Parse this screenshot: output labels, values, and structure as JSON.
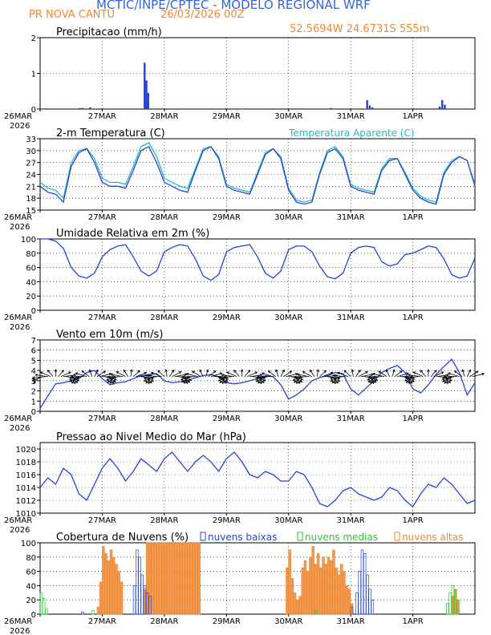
{
  "header": {
    "title": "MCTIC/INPE/CPTEC - MODELO REGIONAL WRF",
    "location": "PR NOVA CANTU",
    "run": "26/03/2026 00Z",
    "coords": "52.5694W 24.6731S 555m"
  },
  "colors": {
    "title": "#3366dd",
    "orange": "#ee8833",
    "blue": "#2244dd",
    "cyan": "#22bbbb",
    "green": "#22cc22",
    "black": "#000000"
  },
  "time_axis": {
    "labels": [
      "26MAR",
      "27MAR",
      "28MAR",
      "29MAR",
      "30MAR",
      "31MAR",
      "1APR"
    ],
    "year": "2026",
    "hours": 168
  },
  "chart_data": [
    {
      "id": "precip",
      "type": "bar",
      "title": "Precipitacao (mm/h)",
      "ylim": [
        0,
        2
      ],
      "yticks": [
        0,
        1,
        2
      ],
      "series": [
        {
          "name": "Precipitacao",
          "x": [
            2,
            15,
            16,
            19,
            40,
            40.7,
            41.4,
            112,
            126,
            127,
            128,
            154,
            155,
            156
          ],
          "values": [
            0.02,
            0.03,
            0.03,
            0.05,
            1.3,
            0.8,
            0.45,
            0.03,
            0.25,
            0.1,
            0.05,
            0.07,
            0.25,
            0.12
          ]
        }
      ]
    },
    {
      "id": "temp",
      "type": "line",
      "title": "2-m Temperatura (C)",
      "legend": "Temperatura Aparente (C)",
      "ylim": [
        15,
        33
      ],
      "yticks": [
        15,
        18,
        21,
        24,
        27,
        30,
        33
      ],
      "series": [
        {
          "name": "Temperatura",
          "x": [
            0,
            3,
            6,
            9,
            12,
            15,
            18,
            21,
            24,
            27,
            30,
            33,
            36,
            39,
            42,
            45,
            48,
            51,
            54,
            57,
            60,
            63,
            66,
            69,
            72,
            75,
            78,
            81,
            84,
            87,
            90,
            93,
            96,
            99,
            102,
            105,
            108,
            111,
            114,
            117,
            120,
            123,
            126,
            129,
            132,
            135,
            138,
            141,
            144,
            147,
            150,
            153,
            156,
            159,
            162,
            165,
            168
          ],
          "values": [
            21,
            19.5,
            19,
            17,
            26,
            29.5,
            30.5,
            27,
            22,
            21,
            21,
            20.5,
            25,
            30,
            31,
            27,
            22,
            21,
            20,
            19.5,
            25,
            30,
            31,
            28,
            21,
            20,
            19.5,
            19,
            24,
            29,
            30.5,
            28,
            20,
            17,
            16.5,
            17,
            24,
            29.5,
            30.5,
            28,
            21,
            20,
            19.5,
            19,
            25,
            27.5,
            28,
            24,
            20,
            18,
            17,
            16.5,
            24,
            27,
            28.5,
            27.5,
            21
          ]
        },
        {
          "name": "Temperatura Aparente",
          "x": [
            0,
            3,
            6,
            9,
            12,
            15,
            18,
            21,
            24,
            27,
            30,
            33,
            36,
            39,
            42,
            45,
            48,
            51,
            54,
            57,
            60,
            63,
            66,
            69,
            72,
            75,
            78,
            81,
            84,
            87,
            90,
            93,
            96,
            99,
            102,
            105,
            108,
            111,
            114,
            117,
            120,
            123,
            126,
            129,
            132,
            135,
            138,
            141,
            144,
            147,
            150,
            153,
            156,
            159,
            162,
            165,
            168
          ],
          "values": [
            22,
            20.5,
            20,
            18,
            27,
            30,
            30.5,
            28,
            23,
            22,
            22,
            21.5,
            26,
            31,
            32,
            28.5,
            23,
            22,
            21,
            20.5,
            25.5,
            30.5,
            31,
            28.5,
            21.5,
            20.5,
            20,
            19.5,
            24.5,
            29.5,
            30.5,
            28.5,
            20.5,
            17.5,
            17,
            17.5,
            24.5,
            30,
            31,
            28.5,
            21.5,
            20.5,
            20,
            19.5,
            25.5,
            28,
            28,
            24.5,
            20.5,
            18.5,
            17.5,
            17,
            24.5,
            27.5,
            28.5,
            27.5,
            21.5
          ]
        }
      ]
    },
    {
      "id": "rh",
      "type": "line",
      "title": "Umidade Relativa em 2m (%)",
      "ylim": [
        0,
        100
      ],
      "yticks": [
        0,
        20,
        40,
        60,
        80,
        100
      ],
      "series": [
        {
          "name": "Umidade",
          "x": [
            0,
            3,
            6,
            9,
            12,
            15,
            18,
            21,
            24,
            27,
            30,
            33,
            36,
            39,
            42,
            45,
            48,
            51,
            54,
            57,
            60,
            63,
            66,
            69,
            72,
            75,
            78,
            81,
            84,
            87,
            90,
            93,
            96,
            99,
            102,
            105,
            108,
            111,
            114,
            117,
            120,
            123,
            126,
            129,
            132,
            135,
            138,
            141,
            144,
            147,
            150,
            153,
            156,
            159,
            162,
            165,
            168
          ],
          "values": [
            100,
            100,
            97,
            87,
            60,
            48,
            45,
            52,
            75,
            85,
            90,
            92,
            75,
            55,
            48,
            55,
            82,
            88,
            92,
            90,
            72,
            48,
            42,
            50,
            82,
            88,
            90,
            92,
            75,
            52,
            45,
            55,
            85,
            90,
            90,
            82,
            62,
            47,
            44,
            52,
            80,
            88,
            90,
            88,
            68,
            62,
            65,
            78,
            80,
            85,
            90,
            88,
            72,
            50,
            45,
            48,
            73
          ]
        }
      ]
    },
    {
      "id": "wind",
      "type": "line",
      "title": "Vento em 10m (m/s)",
      "ylim": [
        0,
        7
      ],
      "yticks": [
        0,
        1,
        2,
        3,
        4,
        5,
        6,
        7
      ],
      "series": [
        {
          "name": "Vento",
          "x": [
            0,
            3,
            6,
            9,
            12,
            15,
            18,
            21,
            24,
            27,
            30,
            33,
            36,
            39,
            42,
            45,
            48,
            51,
            54,
            57,
            60,
            63,
            66,
            69,
            72,
            75,
            78,
            81,
            84,
            87,
            90,
            93,
            96,
            99,
            102,
            105,
            108,
            111,
            114,
            117,
            120,
            123,
            126,
            129,
            132,
            135,
            138,
            141,
            144,
            147,
            150,
            153,
            156,
            159,
            162,
            165,
            168
          ],
          "values": [
            0.3,
            1.5,
            2.7,
            2.8,
            3.0,
            3.2,
            3.8,
            4.0,
            3.2,
            2.6,
            2.8,
            2.9,
            3.2,
            3.5,
            3.6,
            3.7,
            3.0,
            2.8,
            2.9,
            3.0,
            3.3,
            3.5,
            3.6,
            3.4,
            2.8,
            2.7,
            2.8,
            3.0,
            3.2,
            3.5,
            3.4,
            2.6,
            1.2,
            1.6,
            2.2,
            3.0,
            3.3,
            3.5,
            3.8,
            3.7,
            2.2,
            1.6,
            2.3,
            3.0,
            3.8,
            4.2,
            4.5,
            3.8,
            2.2,
            1.8,
            2.6,
            3.6,
            4.4,
            5.1,
            3.8,
            1.6,
            2.8
          ]
        }
      ]
    },
    {
      "id": "pressure",
      "type": "line",
      "title": "Pressao ao Nivel Medio do Mar (hPa)",
      "ylim": [
        1010,
        1021
      ],
      "yticks": [
        1010,
        1012,
        1014,
        1016,
        1018,
        1020
      ],
      "series": [
        {
          "name": "Pressao",
          "x": [
            0,
            3,
            6,
            9,
            12,
            15,
            18,
            21,
            24,
            27,
            30,
            33,
            36,
            39,
            42,
            45,
            48,
            51,
            54,
            57,
            60,
            63,
            66,
            69,
            72,
            75,
            78,
            81,
            84,
            87,
            90,
            93,
            96,
            99,
            102,
            105,
            108,
            111,
            114,
            117,
            120,
            123,
            126,
            129,
            132,
            135,
            138,
            141,
            144,
            147,
            150,
            153,
            156,
            159,
            162,
            165,
            168
          ],
          "values": [
            1014,
            1015.5,
            1014.5,
            1017,
            1016,
            1013,
            1012,
            1014.5,
            1017,
            1018.5,
            1017,
            1015,
            1016.5,
            1018.5,
            1017.5,
            1016.5,
            1018.5,
            1019.5,
            1018,
            1016.5,
            1018,
            1019,
            1018,
            1016.5,
            1018.5,
            1019.5,
            1018,
            1016,
            1015.5,
            1016.5,
            1016,
            1015,
            1015,
            1016.5,
            1016,
            1014,
            1011.5,
            1011,
            1012,
            1013.5,
            1014,
            1013,
            1012.5,
            1012,
            1012.5,
            1014,
            1013.5,
            1012,
            1011,
            1013,
            1014.5,
            1014,
            1015.5,
            1014.5,
            1013,
            1011.5,
            1012
          ]
        }
      ]
    },
    {
      "id": "clouds",
      "type": "bar",
      "title": "Cobertura de Nuvens (%)",
      "legend": [
        "nuvens baixas",
        "nuvens medias",
        "nuvens altas"
      ],
      "ylim": [
        0,
        100
      ],
      "yticks": [
        0,
        20,
        40,
        60,
        80,
        100
      ],
      "series": [
        {
          "name": "nuvens baixas",
          "x": [
            16,
            36,
            37,
            38,
            39,
            40,
            41,
            42,
            120,
            122,
            123,
            124,
            125,
            126,
            127,
            128
          ],
          "values": [
            3,
            40,
            90,
            80,
            55,
            40,
            30,
            25,
            10,
            30,
            60,
            90,
            85,
            55,
            35,
            20
          ]
        },
        {
          "name": "nuvens medias",
          "x": [
            0,
            1,
            2,
            20,
            106,
            157,
            158,
            159,
            160,
            161
          ],
          "values": [
            30,
            22,
            8,
            5,
            5,
            15,
            30,
            40,
            35,
            20
          ]
        },
        {
          "name": "nuvens altas",
          "x": [
            22,
            23,
            24,
            25,
            26,
            27,
            28,
            29,
            30,
            31,
            40,
            41,
            42,
            43,
            44,
            45,
            46,
            47,
            48,
            49,
            50,
            51,
            52,
            53,
            54,
            55,
            56,
            57,
            58,
            59,
            60,
            61,
            95,
            96,
            97,
            98,
            99,
            100,
            101,
            102,
            103,
            104,
            105,
            106,
            107,
            108,
            109,
            110,
            111,
            112,
            113,
            114,
            115,
            116,
            117,
            118,
            119,
            120,
            159,
            160,
            161
          ],
          "values": [
            10,
            45,
            95,
            85,
            75,
            90,
            80,
            70,
            60,
            45,
            35,
            100,
            100,
            100,
            100,
            100,
            100,
            100,
            100,
            100,
            100,
            100,
            100,
            100,
            100,
            100,
            100,
            100,
            100,
            100,
            100,
            100,
            65,
            90,
            50,
            30,
            20,
            25,
            65,
            75,
            60,
            80,
            95,
            70,
            85,
            65,
            80,
            70,
            80,
            75,
            90,
            65,
            55,
            70,
            60,
            40,
            35,
            15,
            25,
            35,
            20
          ]
        }
      ]
    }
  ],
  "wind_barbs": {
    "x": [
      0,
      1,
      2,
      3,
      4,
      5,
      6,
      7,
      8,
      9,
      10,
      11,
      12,
      13,
      14,
      15,
      16,
      17,
      18,
      19,
      20,
      21,
      22,
      23,
      24,
      25,
      26,
      27,
      28,
      29,
      30,
      31,
      32,
      33,
      34,
      35,
      36,
      37,
      38,
      39,
      40,
      41,
      42,
      43,
      44,
      45,
      46,
      47,
      48,
      49,
      50,
      51,
      52,
      53,
      54,
      55,
      56,
      57,
      58,
      59,
      60,
      61,
      62,
      63,
      64,
      65,
      66,
      67,
      68,
      69,
      70,
      71,
      72,
      73,
      74,
      75,
      76,
      77,
      78,
      79,
      80,
      81,
      82,
      83,
      84,
      85,
      86,
      87,
      88,
      89,
      90,
      91,
      92,
      93,
      94,
      95,
      96,
      97,
      98,
      99,
      100,
      101,
      102,
      103,
      104,
      105,
      106,
      107,
      108,
      109,
      110,
      111,
      112,
      113,
      114,
      115,
      116,
      117,
      118,
      119,
      120,
      121,
      122,
      123,
      124,
      125,
      126,
      127,
      128,
      129,
      130,
      131,
      132,
      133,
      134,
      135,
      136,
      137,
      138,
      139,
      140,
      141,
      142,
      143,
      144,
      145,
      146,
      147,
      148,
      149,
      150,
      151,
      152,
      153,
      154,
      155,
      156,
      157,
      158,
      159,
      160,
      161,
      162,
      163,
      164,
      165,
      166,
      167
    ],
    "direction_deg": [
      120,
      145,
      170,
      195,
      220,
      245,
      270,
      295,
      320,
      345,
      10,
      35,
      60,
      85,
      110,
      135,
      160,
      185,
      210,
      235,
      260,
      285,
      310,
      335,
      0,
      25,
      50,
      75,
      100,
      125,
      150,
      175,
      200,
      225,
      250,
      275,
      300,
      325,
      350,
      15,
      40,
      65,
      90,
      115,
      140,
      165,
      190,
      215,
      240,
      265,
      290,
      315,
      340,
      5,
      30,
      55,
      80,
      105,
      130,
      155,
      180,
      205,
      230,
      255,
      280,
      305,
      330,
      355,
      20,
      45,
      70,
      95,
      120,
      145,
      170,
      195,
      220,
      245,
      270,
      295,
      320,
      345,
      10,
      35,
      60,
      85,
      110,
      135,
      160,
      185,
      210,
      235,
      260,
      285,
      310,
      335,
      0,
      25,
      50,
      75,
      100,
      125,
      150,
      175,
      200,
      225,
      250,
      275,
      300,
      325,
      350,
      15,
      40,
      65,
      90,
      115,
      140,
      165,
      190,
      215,
      240,
      265,
      290,
      315,
      340,
      5,
      30,
      55,
      80,
      105,
      130,
      155,
      180,
      205,
      230,
      255,
      280,
      305,
      330,
      355,
      20,
      45,
      70,
      95,
      120,
      145,
      170,
      195,
      220,
      245,
      270,
      295,
      320,
      345,
      10,
      35,
      60,
      85,
      110,
      135,
      160,
      185,
      210,
      235,
      260,
      285,
      310,
      335
    ]
  }
}
